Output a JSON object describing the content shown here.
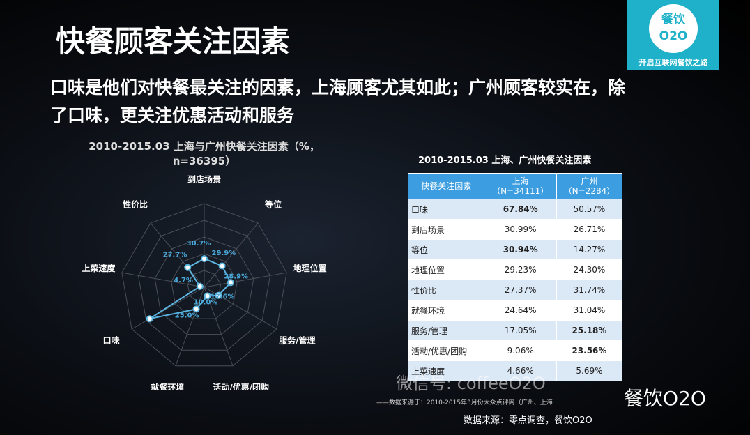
{
  "title": "快餐顾客关注因素",
  "subtitle": "口味是他们对快餐最关注的因素，上海顾客尤其如此；广州顾客较实在，除了口味，更关注优惠活动和服务",
  "logo": {
    "line1": "餐饮",
    "line2": "O2O",
    "slogan": "开启互联网餐饮之路"
  },
  "chart_data": {
    "type": "radar",
    "title": "2010-2015.03 上海与广州快餐关注因素（%，n=36395）",
    "categories": [
      "到店场景",
      "等位",
      "地理位置",
      "服务/管理",
      "活动/优惠/团购",
      "就餐环境",
      "口味",
      "上菜速度",
      "性价比"
    ],
    "values": [
      30.7,
      29.9,
      28.9,
      17.6,
      10.0,
      25.0,
      67.8,
      4.7,
      27.7
    ],
    "value_labels": [
      "30.7%",
      "29.9%",
      "28.9%",
      "17.6%",
      "10.0%",
      "25.0%",
      null,
      "4.7%",
      "27.7%"
    ],
    "rlim": [
      0,
      90
    ],
    "color": "#5bb5e0"
  },
  "table": {
    "title": "2010-2015.03 上海、广州快餐关注因素",
    "headers": [
      [
        "快餐关注因素"
      ],
      [
        "上海",
        "（N=34111）"
      ],
      [
        "广州",
        "（N=2284）"
      ]
    ],
    "rows": [
      [
        "口味",
        "67.84%",
        "50.57%"
      ],
      [
        "到店场景",
        "30.99%",
        "26.71%"
      ],
      [
        "等位",
        "30.94%",
        "14.27%"
      ],
      [
        "地理位置",
        "29.23%",
        "24.30%"
      ],
      [
        "性价比",
        "27.37%",
        "31.74%"
      ],
      [
        "就餐环境",
        "24.64%",
        "31.04%"
      ],
      [
        "服务/管理",
        "17.05%",
        "25.18%"
      ],
      [
        "活动/优惠/团购",
        "9.06%",
        "23.56%"
      ],
      [
        "上菜速度",
        "4.66%",
        "5.69%"
      ]
    ],
    "footnote": "——数据来源于：2010-2015年3月份大众点评网（广州、上海"
  },
  "watermark": {
    "handle": "微信号: coffeeO2O",
    "brand": "餐饮O2O"
  },
  "source": "数据来源：零点调查，餐饮O2O"
}
